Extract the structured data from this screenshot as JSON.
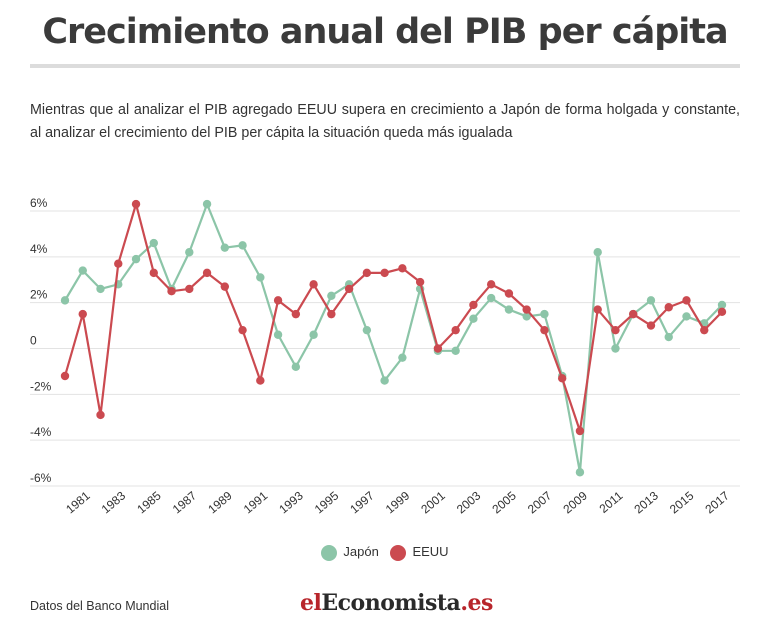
{
  "header": {
    "title": "Crecimiento anual del PIB per cápita",
    "subtitle": "Mientras que al analizar el PIB agregado EEUU supera en crecimiento a Japón de forma holgada y constante, al analizar el crecimiento del PIB per cápita la situación queda más igualada"
  },
  "footer": {
    "source": "Datos del Banco Mundial",
    "brand_prefix": "el",
    "brand_middle": "Economista",
    "brand_suffix": ".es"
  },
  "colors": {
    "japan": "#8cc5a8",
    "usa": "#cb4a50",
    "grid": "#e3e3e3",
    "text": "#333333"
  },
  "chart_data": {
    "type": "line",
    "title": "Crecimiento anual del PIB per cápita",
    "x": [
      1980,
      1981,
      1982,
      1983,
      1984,
      1985,
      1986,
      1987,
      1988,
      1989,
      1990,
      1991,
      1992,
      1993,
      1994,
      1995,
      1996,
      1997,
      1998,
      1999,
      2000,
      2001,
      2002,
      2003,
      2004,
      2005,
      2006,
      2007,
      2008,
      2009,
      2010,
      2011,
      2012,
      2013,
      2014,
      2015,
      2016,
      2017
    ],
    "x_tick_labels": [
      "1981",
      "1983",
      "1985",
      "1987",
      "1989",
      "1991",
      "1993",
      "1995",
      "1997",
      "1999",
      "2001",
      "2003",
      "2005",
      "2007",
      "2009",
      "2011",
      "2013",
      "2015",
      "2017"
    ],
    "y_tick_labels": [
      "6%",
      "4%",
      "2%",
      "0",
      "-2%",
      "-4%",
      "-6%"
    ],
    "y_ticks": [
      6,
      4,
      2,
      0,
      -2,
      -4,
      -6
    ],
    "ylim": [
      -6,
      6
    ],
    "grid": true,
    "legend_position": "bottom",
    "series": [
      {
        "name": "Japón",
        "color": "#8cc5a8",
        "values": [
          2.1,
          3.4,
          2.6,
          2.8,
          3.9,
          4.6,
          2.6,
          4.2,
          6.3,
          4.4,
          4.5,
          3.1,
          0.6,
          -0.8,
          0.6,
          2.3,
          2.8,
          0.8,
          -1.4,
          -0.4,
          2.6,
          -0.1,
          -0.1,
          1.3,
          2.2,
          1.7,
          1.4,
          1.5,
          -1.2,
          -5.4,
          4.2,
          0.0,
          1.5,
          2.1,
          0.5,
          1.4,
          1.1,
          1.9
        ]
      },
      {
        "name": "EEUU",
        "color": "#cb4a50",
        "values": [
          -1.2,
          1.5,
          -2.9,
          3.7,
          6.3,
          3.3,
          2.5,
          2.6,
          3.3,
          2.7,
          0.8,
          -1.4,
          2.1,
          1.5,
          2.8,
          1.5,
          2.6,
          3.3,
          3.3,
          3.5,
          2.9,
          -0.0,
          0.8,
          1.9,
          2.8,
          2.4,
          1.7,
          0.8,
          -1.3,
          -3.6,
          1.7,
          0.8,
          1.5,
          1.0,
          1.8,
          2.1,
          0.8,
          1.6
        ]
      }
    ]
  }
}
